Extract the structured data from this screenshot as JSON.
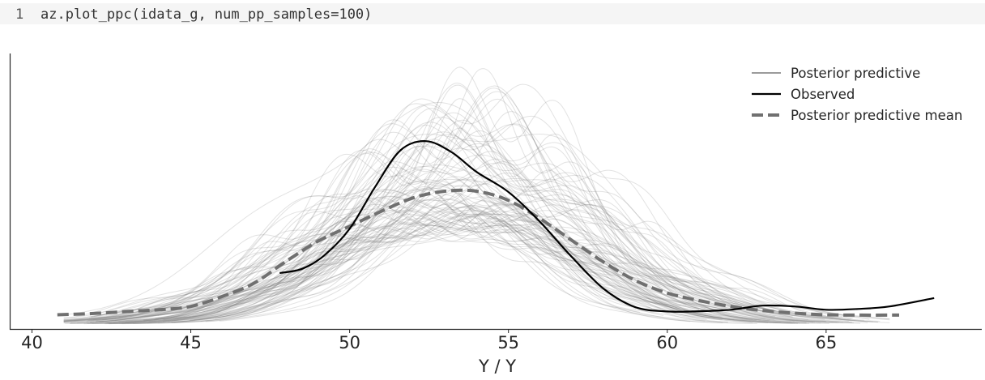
{
  "code_cell": {
    "line_number": "1",
    "code": "az.plot_ppc(idata_g, num_pp_samples=100)"
  },
  "colors": {
    "posterior_predictive": "#7a7a7a",
    "observed": "#000000",
    "posterior_predictive_mean": "#707070",
    "code_background": "#f5f5f5"
  },
  "chart_data": {
    "type": "line",
    "title": "",
    "xlabel": "Y / Y",
    "ylabel": "",
    "xlim": [
      39.3,
      69.9
    ],
    "ylim": [
      0,
      0.165
    ],
    "x_ticks": [
      "40",
      "45",
      "50",
      "55",
      "60",
      "65"
    ],
    "y_ticks_visible": false,
    "grid": false,
    "legend": {
      "placement": "top-right",
      "entries": [
        "Posterior predictive",
        "Observed",
        "Posterior predictive mean"
      ]
    },
    "series": [
      {
        "name": "Posterior predictive",
        "style": "thin light gray lines, 100 draws",
        "samples": 100,
        "x_range": [
          41,
          67
        ],
        "peak_y_range": [
          0.062,
          0.155
        ]
      },
      {
        "name": "Observed",
        "style": "solid black",
        "x": [
          47.8,
          48.5,
          49.2,
          50.0,
          50.8,
          51.6,
          52.4,
          53.2,
          54.0,
          55.0,
          56.0,
          57.0,
          58.0,
          59.0,
          60.0,
          60.8,
          62.0,
          63.0,
          64.0,
          65.0,
          66.0,
          67.0,
          68.4
        ],
        "y": [
          0.0335,
          0.036,
          0.044,
          0.06,
          0.085,
          0.107,
          0.1125,
          0.106,
          0.094,
          0.082,
          0.064,
          0.043,
          0.024,
          0.013,
          0.0105,
          0.0105,
          0.0115,
          0.014,
          0.0135,
          0.0115,
          0.012,
          0.0135,
          0.0185
        ]
      },
      {
        "name": "Posterior predictive mean",
        "style": "dashed gray",
        "x": [
          40.8,
          42.0,
          43.0,
          44.0,
          45.0,
          46.0,
          47.0,
          48.0,
          49.0,
          50.0,
          51.0,
          52.0,
          53.0,
          54.0,
          55.0,
          56.0,
          57.0,
          58.0,
          59.0,
          60.0,
          61.0,
          62.0,
          63.0,
          64.0,
          65.0,
          66.0,
          67.3
        ],
        "y": [
          0.0085,
          0.0093,
          0.0105,
          0.0115,
          0.0135,
          0.0195,
          0.0275,
          0.0405,
          0.0525,
          0.0615,
          0.0705,
          0.0785,
          0.0825,
          0.0825,
          0.077,
          0.066,
          0.053,
          0.04,
          0.029,
          0.0215,
          0.017,
          0.0135,
          0.011,
          0.0095,
          0.0085,
          0.0083,
          0.0083
        ]
      }
    ]
  }
}
